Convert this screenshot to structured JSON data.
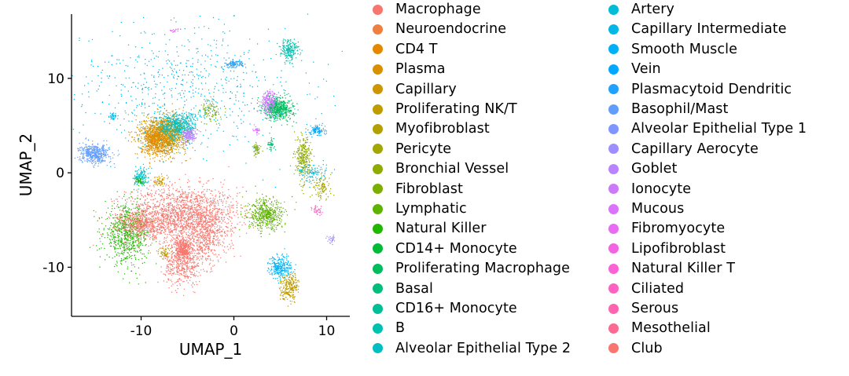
{
  "chart_data": {
    "type": "scatter",
    "title": "",
    "xlabel": "UMAP_1",
    "ylabel": "UMAP_2",
    "xlim": [
      -17.5,
      12.5
    ],
    "ylim": [
      -15.2,
      16.8
    ],
    "xticks": [
      -10,
      0,
      10
    ],
    "yticks": [
      -10,
      0,
      10
    ],
    "grid": false,
    "legend_position": "right",
    "series": [
      {
        "name": "Macrophage",
        "color": "#F8766D"
      },
      {
        "name": "Neuroendocrine",
        "color": "#EF7F3F"
      },
      {
        "name": "CD4 T",
        "color": "#E38900"
      },
      {
        "name": "Plasma",
        "color": "#D89000"
      },
      {
        "name": "Capillary",
        "color": "#CD9600"
      },
      {
        "name": "Proliferating NK/T",
        "color": "#C09B00"
      },
      {
        "name": "Myofibroblast",
        "color": "#B3A000"
      },
      {
        "name": "Pericyte",
        "color": "#A3A500"
      },
      {
        "name": "Bronchial Vessel",
        "color": "#8FAA00"
      },
      {
        "name": "Fibroblast",
        "color": "#7CAE00"
      },
      {
        "name": "Lymphatic",
        "color": "#5EB300"
      },
      {
        "name": "Natural Killer",
        "color": "#20B700"
      },
      {
        "name": "CD14+ Monocyte",
        "color": "#00BA38"
      },
      {
        "name": "Proliferating Macrophage",
        "color": "#00BC5C"
      },
      {
        "name": "Basal",
        "color": "#00BE7A"
      },
      {
        "name": "CD16+ Monocyte",
        "color": "#00BF96"
      },
      {
        "name": "B",
        "color": "#00C0AF"
      },
      {
        "name": "Alveolar Epithelial Type 2",
        "color": "#00BFC4"
      },
      {
        "name": "Artery",
        "color": "#00BCD6"
      },
      {
        "name": "Capillary Intermediate",
        "color": "#00B8E7"
      },
      {
        "name": "Smooth Muscle",
        "color": "#00B0F6"
      },
      {
        "name": "Vein",
        "color": "#00A9FF"
      },
      {
        "name": "Plasmacytoid Dendritic",
        "color": "#1FA1FF"
      },
      {
        "name": "Basophil/Mast",
        "color": "#619CFF"
      },
      {
        "name": "Alveolar Epithelial Type 1",
        "color": "#7F96FF"
      },
      {
        "name": "Capillary Aerocyte",
        "color": "#9D8FFF"
      },
      {
        "name": "Goblet",
        "color": "#B983FF"
      },
      {
        "name": "Ionocyte",
        "color": "#CC7AF8"
      },
      {
        "name": "Mucous",
        "color": "#DB72FB"
      },
      {
        "name": "Fibromyocyte",
        "color": "#E76BF3"
      },
      {
        "name": "Lipofibroblast",
        "color": "#F264E0"
      },
      {
        "name": "Natural Killer T",
        "color": "#FA62D5"
      },
      {
        "name": "Ciliated",
        "color": "#FF61C3"
      },
      {
        "name": "Serous",
        "color": "#FF65AE"
      },
      {
        "name": "Mesothelial",
        "color": "#FC6A94"
      },
      {
        "name": "Club",
        "color": "#F8766D"
      }
    ],
    "clusters": [
      {
        "label": "Macrophage",
        "x": -5.5,
        "y": -4.5,
        "sx": 3.0,
        "sy": 1.5,
        "n": 1800
      },
      {
        "label": "Macrophage",
        "x": -5.5,
        "y": -9.5,
        "sx": 1.0,
        "sy": 1.2,
        "n": 500
      },
      {
        "label": "Macrophage",
        "x": -3.0,
        "y": -7.0,
        "sx": 1.2,
        "sy": 1.4,
        "n": 400
      },
      {
        "label": "Natural Killer",
        "x": -11.5,
        "y": -6.5,
        "sx": 1.2,
        "sy": 1.5,
        "n": 700
      },
      {
        "label": "Club",
        "x": -10.0,
        "y": -5.5,
        "sx": 1.2,
        "sy": 0.7,
        "n": 400
      },
      {
        "label": "Capillary",
        "x": -7.5,
        "y": 4.0,
        "sx": 1.2,
        "sy": 1.0,
        "n": 1300
      },
      {
        "label": "CD4 T",
        "x": -8.5,
        "y": 3.5,
        "sx": 0.8,
        "sy": 0.8,
        "n": 400
      },
      {
        "label": "Alveolar Epithelial Type 2",
        "x": -6.0,
        "y": 5.0,
        "sx": 1.0,
        "sy": 0.7,
        "n": 500
      },
      {
        "label": "Goblet",
        "x": -4.8,
        "y": 4.0,
        "sx": 0.4,
        "sy": 0.4,
        "n": 150
      },
      {
        "label": "Fibroblast",
        "x": -2.5,
        "y": 6.5,
        "sx": 0.5,
        "sy": 0.6,
        "n": 100
      },
      {
        "label": "Basophil/Mast",
        "x": -15.0,
        "y": 2.0,
        "sx": 0.8,
        "sy": 0.5,
        "n": 450
      },
      {
        "label": "Alveolar Epithelial Type 2",
        "x": -10.0,
        "y": -0.5,
        "sx": 0.4,
        "sy": 0.5,
        "n": 150
      },
      {
        "label": "Natural Killer",
        "x": -10.2,
        "y": -0.9,
        "sx": 0.2,
        "sy": 0.2,
        "n": 40
      },
      {
        "label": "Capillary",
        "x": -8.0,
        "y": -0.8,
        "sx": 0.3,
        "sy": 0.3,
        "n": 60
      },
      {
        "label": "Proliferating Macrophage",
        "x": 4.8,
        "y": 6.8,
        "sx": 0.8,
        "sy": 0.6,
        "n": 550
      },
      {
        "label": "Ionocyte",
        "x": 3.8,
        "y": 7.5,
        "sx": 0.4,
        "sy": 0.6,
        "n": 200
      },
      {
        "label": "B",
        "x": 6.0,
        "y": 13.0,
        "sx": 0.5,
        "sy": 0.6,
        "n": 200
      },
      {
        "label": "Plasmacytoid Dendritic",
        "x": 0.0,
        "y": 11.5,
        "sx": 0.5,
        "sy": 0.2,
        "n": 100
      },
      {
        "label": "Lymphatic",
        "x": 3.5,
        "y": -4.5,
        "sx": 1.0,
        "sy": 0.8,
        "n": 500
      },
      {
        "label": "Proliferating NK/T",
        "x": 6.0,
        "y": -12.0,
        "sx": 0.5,
        "sy": 0.7,
        "n": 250
      },
      {
        "label": "Smooth Muscle",
        "x": 5.0,
        "y": -10.0,
        "sx": 0.6,
        "sy": 0.6,
        "n": 250
      },
      {
        "label": "Bronchial Vessel",
        "x": 7.5,
        "y": 1.5,
        "sx": 0.4,
        "sy": 1.2,
        "n": 300
      },
      {
        "label": "Vein",
        "x": 9.0,
        "y": 4.5,
        "sx": 0.4,
        "sy": 0.3,
        "n": 100
      },
      {
        "label": "Pericyte",
        "x": 9.5,
        "y": -1.5,
        "sx": 0.5,
        "sy": 0.6,
        "n": 100
      },
      {
        "label": "Artery",
        "x": 8.5,
        "y": 0.0,
        "sx": 0.8,
        "sy": 0.5,
        "n": 100
      },
      {
        "label": "Fibroblast",
        "x": 2.5,
        "y": 2.5,
        "sx": 0.2,
        "sy": 0.3,
        "n": 60
      },
      {
        "label": "Basal",
        "x": 4.0,
        "y": 3.0,
        "sx": 0.2,
        "sy": 0.3,
        "n": 40
      },
      {
        "label": "Mucous",
        "x": 2.5,
        "y": 4.5,
        "sx": 0.2,
        "sy": 0.2,
        "n": 30
      },
      {
        "label": "Capillary Intermediate",
        "x": -5.0,
        "y": 9.0,
        "sx": 6.0,
        "sy": 3.5,
        "n": 700
      },
      {
        "label": "Fibromyocyte",
        "x": -6.5,
        "y": 15.0,
        "sx": 0.2,
        "sy": 0.1,
        "n": 15
      },
      {
        "label": "Myofibroblast",
        "x": -7.5,
        "y": -8.5,
        "sx": 0.3,
        "sy": 0.3,
        "n": 50
      },
      {
        "label": "Ciliated",
        "x": 9.0,
        "y": -4.0,
        "sx": 0.3,
        "sy": 0.3,
        "n": 40
      },
      {
        "label": "Capillary Aerocyte",
        "x": 10.5,
        "y": -7.0,
        "sx": 0.3,
        "sy": 0.3,
        "n": 30
      },
      {
        "label": "Capillary Intermediate",
        "x": -13.0,
        "y": 6.0,
        "sx": 0.2,
        "sy": 0.2,
        "n": 40
      },
      {
        "label": "Macrophage",
        "x": -5.5,
        "y": -8.0,
        "sx": 0.5,
        "sy": 0.5,
        "n": 300
      }
    ]
  }
}
